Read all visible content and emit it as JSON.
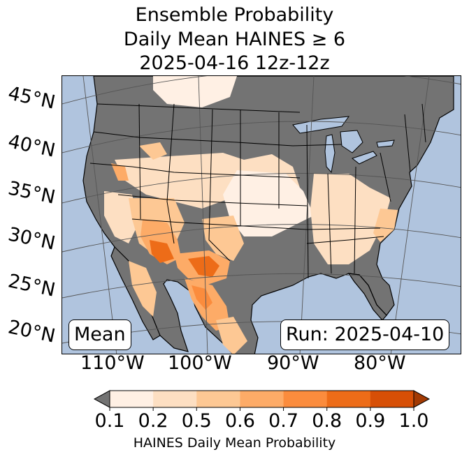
{
  "title": {
    "line1": "Ensemble Probability",
    "line2": "Daily Mean HAINES ≥ 6",
    "line3": "2025-04-16 12z-12z"
  },
  "colors": {
    "ocean": "#b0c4de",
    "land_low": "#737373",
    "lakes": "#b0c4de",
    "borders": "#000000",
    "gridlines": "#555555"
  },
  "map": {
    "lat_labels": [
      "45°N",
      "40°N",
      "35°N",
      "30°N",
      "25°N",
      "20°N"
    ],
    "lon_labels": [
      "110°W",
      "100°W",
      "90°W",
      "80°W"
    ],
    "mean_label": "Mean",
    "run_label": "Run: 2025-04-10"
  },
  "colorbar": {
    "ticks": [
      "0.1",
      "0.2",
      "0.5",
      "0.6",
      "0.7",
      "0.8",
      "0.9",
      "1.0"
    ],
    "bins": [
      {
        "from": 0.1,
        "to": 0.2,
        "color": "#fff0e4"
      },
      {
        "from": 0.2,
        "to": 0.5,
        "color": "#fddfc2"
      },
      {
        "from": 0.5,
        "to": 0.6,
        "color": "#fdc894"
      },
      {
        "from": 0.6,
        "to": 0.7,
        "color": "#fdab67"
      },
      {
        "from": 0.7,
        "to": 0.8,
        "color": "#fb8c3d"
      },
      {
        "from": 0.8,
        "to": 0.9,
        "color": "#ed6c18"
      },
      {
        "from": 0.9,
        "to": 1.0,
        "color": "#d74f06"
      }
    ],
    "under_color": "#737373",
    "over_color": "#a33a03",
    "label": "HAINES Daily Mean Probability"
  }
}
